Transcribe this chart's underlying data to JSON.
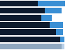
{
  "bars": [
    {
      "dark": 0.55,
      "blue": 0.4
    },
    {
      "dark": 0.65,
      "blue": 0.25
    },
    {
      "dark": 0.6,
      "blue": 0.15
    },
    {
      "dark": 0.72,
      "blue": 0.2
    },
    {
      "dark": 0.82,
      "blue": 0.1
    },
    {
      "dark": 0.88,
      "blue": 0.06
    },
    {
      "dark": 0.9,
      "blue": 0.04
    }
  ],
  "dark_color": "#0d1b2e",
  "blue_color": "#3a8fd4",
  "last_dark_color": "#8fa8c0",
  "last_blue_color": "#b8d0e8",
  "bg_color": "#ffffff",
  "bar_height": 0.82,
  "xlim": 1.02
}
